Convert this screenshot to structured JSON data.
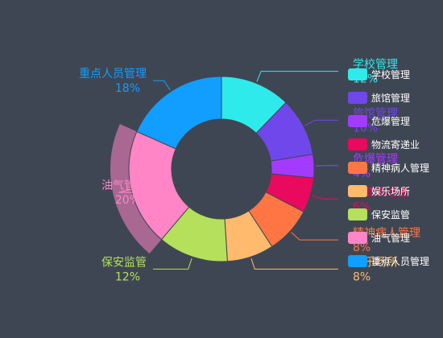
{
  "chart_data": {
    "type": "pie",
    "variant": "donut",
    "highlighted": "油气管理",
    "slices": [
      {
        "name": "学校管理",
        "value": 12,
        "label": "12%",
        "color": "#2feaea"
      },
      {
        "name": "旅馆管理",
        "value": 10,
        "label": "10%",
        "color": "#6f47ea"
      },
      {
        "name": "危爆管理",
        "value": 4,
        "label": "4%",
        "color": "#a33bff"
      },
      {
        "name": "物流寄递业",
        "value": 6,
        "label": "6%",
        "color": "#e9095f"
      },
      {
        "name": "精神病人管理",
        "value": 8,
        "label": "8%",
        "color": "#ff7644"
      },
      {
        "name": "娱乐场所",
        "value": 8,
        "label": "8%",
        "color": "#ffba6e"
      },
      {
        "name": "保安监管",
        "value": 12,
        "label": "12%",
        "color": "#b4e05b"
      },
      {
        "name": "油气管理",
        "value": 20,
        "label": "20%",
        "color": "#ff85c6"
      },
      {
        "name": "重点人员管理",
        "value": 18,
        "label": "18%",
        "color": "#129eff"
      }
    ],
    "legend_position": "right"
  }
}
